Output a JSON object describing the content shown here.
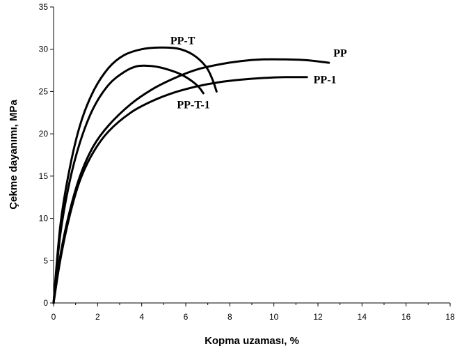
{
  "chart_data": {
    "type": "line",
    "title": "",
    "xlabel": "Kopma uzaması, %",
    "ylabel": "Çekme dayanımı, MPa",
    "xlim": [
      0,
      18
    ],
    "ylim": [
      0,
      35
    ],
    "xticks": [
      "0",
      "2",
      "4",
      "6",
      "8",
      "10",
      "12",
      "14",
      "16",
      "18"
    ],
    "yticks": [
      "0",
      "5",
      "10",
      "15",
      "20",
      "25",
      "30",
      "35"
    ],
    "grid": false,
    "legend": "none",
    "line_color": "#000000",
    "series": [
      {
        "name": "PP-T",
        "x": [
          0,
          0.3,
          0.7,
          1.2,
          1.8,
          2.5,
          3.2,
          4.0,
          4.8,
          5.6,
          6.3,
          6.9,
          7.2,
          7.4
        ],
        "y": [
          0,
          9.0,
          15.5,
          21.0,
          25.0,
          27.8,
          29.3,
          30.0,
          30.2,
          30.1,
          29.4,
          28.0,
          26.5,
          25.0
        ]
      },
      {
        "name": "PP-T-1",
        "x": [
          0,
          0.3,
          0.7,
          1.2,
          1.8,
          2.5,
          3.2,
          3.8,
          4.5,
          5.2,
          5.8,
          6.3,
          6.6,
          6.8
        ],
        "y": [
          0,
          8.0,
          14.0,
          19.0,
          23.0,
          25.8,
          27.3,
          28.0,
          28.0,
          27.6,
          27.0,
          26.2,
          25.5,
          24.8
        ]
      },
      {
        "name": "PP",
        "x": [
          0,
          0.3,
          0.7,
          1.2,
          1.8,
          2.5,
          3.5,
          4.5,
          5.5,
          6.5,
          7.5,
          8.5,
          9.5,
          10.5,
          11.5,
          12.5
        ],
        "y": [
          0,
          5.5,
          10.5,
          15.0,
          18.5,
          21.0,
          23.5,
          25.3,
          26.6,
          27.6,
          28.2,
          28.6,
          28.8,
          28.8,
          28.7,
          28.4
        ]
      },
      {
        "name": "PP-1",
        "x": [
          0,
          0.3,
          0.7,
          1.2,
          1.8,
          2.5,
          3.5,
          4.5,
          5.5,
          6.5,
          7.5,
          8.5,
          9.5,
          10.5,
          11.5
        ],
        "y": [
          0,
          5.0,
          10.0,
          14.5,
          17.8,
          20.3,
          22.5,
          23.9,
          24.9,
          25.6,
          26.1,
          26.4,
          26.6,
          26.7,
          26.7
        ]
      }
    ],
    "annotations": [
      {
        "text": "PP-T",
        "x": 5.3,
        "y": 30.6
      },
      {
        "text": "PP-T-1",
        "x": 5.6,
        "y": 23.0
      },
      {
        "text": "PP",
        "x": 12.7,
        "y": 29.1
      },
      {
        "text": "PP-1",
        "x": 11.8,
        "y": 26.0
      }
    ]
  }
}
